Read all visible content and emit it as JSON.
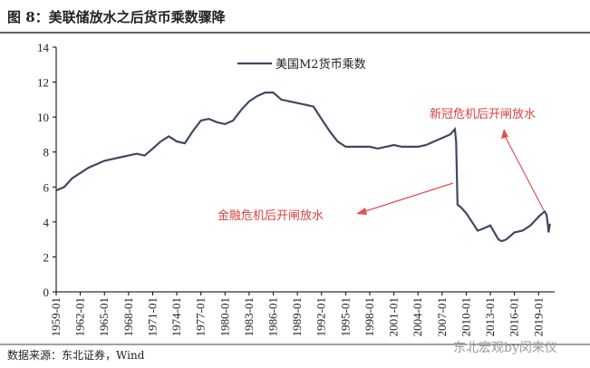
{
  "title": "图 8：美联储放水之后货币乘数骤降",
  "source": "数据来源：东北证券，Wind",
  "watermark": "东北宏观by闵来仪",
  "chart_data": {
    "type": "line",
    "ylim": [
      0,
      14
    ],
    "yticks": [
      0,
      2,
      4,
      6,
      8,
      10,
      12,
      14
    ],
    "xlim": [
      "1959-01",
      "2021-01"
    ],
    "xticks": [
      "1959-01",
      "1962-01",
      "1965-01",
      "1968-01",
      "1971-01",
      "1974-01",
      "1977-01",
      "1980-01",
      "1983-01",
      "1986-01",
      "1989-01",
      "1992-01",
      "1995-01",
      "1998-01",
      "2001-01",
      "2004-01",
      "2007-01",
      "2010-01",
      "2013-01",
      "2016-01",
      "2019-01"
    ],
    "annotations": [
      "新冠危机后开闸放水",
      "金融危机后开闸放水"
    ],
    "series": [
      {
        "name": "美国M2货币乘数",
        "color": "#3d4a5e",
        "x": [
          "1959-01",
          "1960-01",
          "1961-01",
          "1962-01",
          "1963-01",
          "1964-01",
          "1965-01",
          "1966-01",
          "1967-01",
          "1968-01",
          "1969-01",
          "1970-01",
          "1971-01",
          "1972-01",
          "1973-01",
          "1974-01",
          "1975-01",
          "1976-01",
          "1977-01",
          "1978-01",
          "1979-01",
          "1980-01",
          "1981-01",
          "1982-01",
          "1983-01",
          "1984-01",
          "1985-01",
          "1986-01",
          "1987-01",
          "1988-01",
          "1989-01",
          "1990-01",
          "1991-01",
          "1992-01",
          "1993-01",
          "1994-01",
          "1995-01",
          "1996-01",
          "1997-01",
          "1998-01",
          "1999-01",
          "2000-01",
          "2001-01",
          "2002-01",
          "2003-01",
          "2004-01",
          "2005-01",
          "2006-01",
          "2007-01",
          "2008-01",
          "2008-08",
          "2008-10",
          "2008-12",
          "2009-06",
          "2010-01",
          "2011-01",
          "2011-06",
          "2012-01",
          "2013-01",
          "2014-01",
          "2014-06",
          "2015-01",
          "2016-01",
          "2017-01",
          "2018-01",
          "2019-01",
          "2019-10",
          "2020-01",
          "2020-03",
          "2020-04",
          "2020-06"
        ],
        "values": [
          5.8,
          6.0,
          6.5,
          6.8,
          7.1,
          7.3,
          7.5,
          7.6,
          7.7,
          7.8,
          7.9,
          7.8,
          8.2,
          8.6,
          8.9,
          8.6,
          8.5,
          9.2,
          9.8,
          9.9,
          9.7,
          9.6,
          9.8,
          10.4,
          10.9,
          11.2,
          11.4,
          11.4,
          11.0,
          10.9,
          10.8,
          10.7,
          10.6,
          9.9,
          9.2,
          8.6,
          8.3,
          8.3,
          8.3,
          8.3,
          8.2,
          8.3,
          8.4,
          8.3,
          8.3,
          8.3,
          8.4,
          8.6,
          8.8,
          9.0,
          9.3,
          8.6,
          5.0,
          4.8,
          4.5,
          3.8,
          3.5,
          3.6,
          3.8,
          3.0,
          2.9,
          3.0,
          3.4,
          3.5,
          3.8,
          4.3,
          4.6,
          4.4,
          3.8,
          3.4,
          3.9
        ]
      }
    ]
  }
}
